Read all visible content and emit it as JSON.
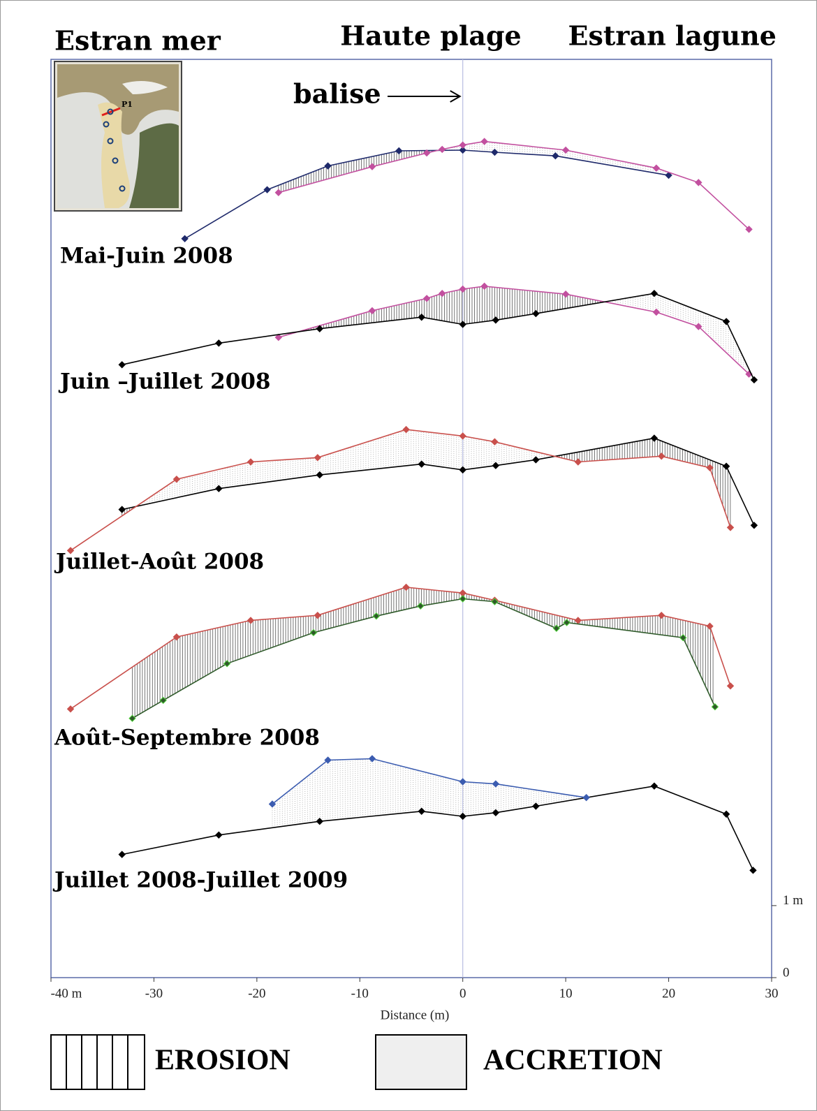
{
  "header": {
    "left": "Estran mer",
    "center": "Haute plage",
    "right": "Estran lagune"
  },
  "inset": {
    "label": "P1"
  },
  "chart_data": {
    "type": "line",
    "annotation": {
      "text": "balise",
      "x": 0
    },
    "xlabel": "Distance (m)",
    "xlim": [
      -40,
      30
    ],
    "xticks": [
      {
        "value": -40,
        "label": "-40 m"
      },
      -30,
      -20,
      -10,
      0,
      10,
      20,
      30
    ],
    "ylim": [
      0,
      12.75
    ],
    "yticks": [
      0,
      {
        "value": 1,
        "label": "1 m"
      }
    ],
    "panels": [
      {
        "title": "Mai-Juin 2008",
        "series": [
          {
            "color": "#1f2a6b",
            "x": [
              -27.0,
              -19.0,
              -13.1,
              -6.2,
              0,
              3.1,
              9.0,
              20.0
            ],
            "values": [
              10.26,
              10.94,
              11.27,
              11.48,
              11.49,
              11.46,
              11.41,
              11.14
            ]
          },
          {
            "color": "#c2509f",
            "x": [
              -17.9,
              -8.8,
              -3.5,
              -2.0,
              0,
              2.1,
              10.0,
              18.8,
              22.9,
              27.8
            ],
            "values": [
              10.9,
              11.26,
              11.45,
              11.5,
              11.56,
              11.61,
              11.49,
              11.24,
              11.04,
              10.39
            ]
          }
        ]
      },
      {
        "title": "Juin –Juillet 2008",
        "series": [
          {
            "color": "#c2509f",
            "x": [
              -17.9,
              -8.8,
              -3.5,
              -2.0,
              0,
              2.1,
              10.0,
              18.8,
              22.9,
              27.8
            ],
            "values": [
              8.89,
              9.26,
              9.43,
              9.5,
              9.56,
              9.6,
              9.49,
              9.24,
              9.04,
              8.38
            ]
          },
          {
            "color": "#000000",
            "x": [
              -33.1,
              -23.7,
              -13.9,
              -4.0,
              0,
              3.2,
              7.1,
              18.6,
              25.6,
              28.3
            ],
            "values": [
              8.51,
              8.81,
              9.01,
              9.17,
              9.07,
              9.13,
              9.22,
              9.5,
              9.11,
              8.3
            ]
          }
        ]
      },
      {
        "title": "Juillet-Août 2008",
        "series": [
          {
            "color": "#000000",
            "x": [
              -33.1,
              -23.7,
              -13.9,
              -4.0,
              0,
              3.2,
              7.1,
              18.6,
              25.6,
              28.3
            ],
            "values": [
              6.5,
              6.79,
              6.98,
              7.13,
              7.05,
              7.11,
              7.19,
              7.49,
              7.1,
              6.28
            ]
          },
          {
            "color": "#c9504c",
            "x": [
              -38.1,
              -27.8,
              -20.6,
              -14.1,
              -5.5,
              0,
              3.1,
              11.2,
              19.3,
              24.0,
              26.0
            ],
            "values": [
              5.93,
              6.92,
              7.16,
              7.22,
              7.61,
              7.52,
              7.44,
              7.16,
              7.24,
              7.08,
              6.25
            ]
          }
        ]
      },
      {
        "title": "Août-Septembre 2008",
        "series": [
          {
            "color": "#c9504c",
            "x": [
              -38.1,
              -27.8,
              -20.6,
              -14.1,
              -5.5,
              0,
              3.1,
              11.2,
              19.3,
              24.0,
              26.0
            ],
            "values": [
              3.73,
              4.73,
              4.96,
              5.03,
              5.42,
              5.34,
              5.24,
              4.96,
              5.03,
              4.88,
              4.05
            ]
          },
          {
            "color": "#2f5a2a",
            "x": [
              -32.1,
              -29.1,
              -22.9,
              -14.5,
              -8.4,
              -4.1,
              0,
              3.1,
              9.1,
              10.1,
              21.4,
              24.5
            ],
            "values": [
              3.6,
              3.85,
              4.36,
              4.79,
              5.02,
              5.16,
              5.26,
              5.22,
              4.85,
              4.93,
              4.72,
              3.76
            ]
          }
        ]
      },
      {
        "title": "Juillet 2008-Juillet 2009",
        "series": [
          {
            "color": "#000000",
            "x": [
              -33.1,
              -23.7,
              -13.9,
              -4.0,
              0,
              3.2,
              7.1,
              18.6,
              25.6,
              28.2
            ],
            "values": [
              1.71,
              1.98,
              2.17,
              2.31,
              2.24,
              2.29,
              2.38,
              2.66,
              2.27,
              1.49
            ]
          },
          {
            "color": "#3b5cb0",
            "x": [
              -18.5,
              -13.1,
              -8.8,
              0,
              3.2,
              12.0
            ],
            "values": [
              2.41,
              3.02,
              3.04,
              2.72,
              2.69,
              2.5
            ]
          }
        ]
      }
    ]
  },
  "legend": {
    "erosion": "EROSION",
    "accretion": "ACCRETION"
  }
}
